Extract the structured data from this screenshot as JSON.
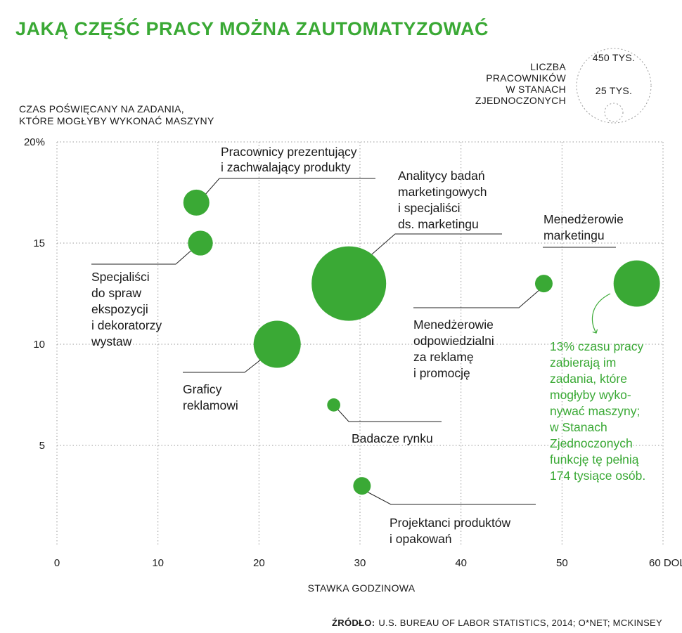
{
  "title": "JAKĄ CZĘŚĆ PRACY MOŻNA ZAUTOMATYZOWAĆ",
  "size_legend": {
    "label_lines": [
      "LICZBA",
      "PRACOWNIKÓW",
      "W STANACH",
      "ZJEDNOCZONYCH"
    ],
    "large_label": "450 TYS.",
    "small_label": "25 TYS.",
    "large_value": 450,
    "small_value": 25
  },
  "source": {
    "label": "ŹRÓDŁO:",
    "text": "U.S. BUREAU OF LABOR STATISTICS, 2014; O*NET; MCKINSEY"
  },
  "annotation_lines": [
    "13% czasu pracy",
    "zabierają im",
    "zadania, które",
    "mogłyby wyko-",
    "nywać maszyny;",
    "w Stanach",
    "Zjednoczonych",
    "funkcję tę pełnią",
    "174 tysiące osób."
  ],
  "colors": {
    "accent": "#3aa935",
    "text": "#1a1a1a",
    "grid": "#9a9a9a"
  },
  "chart_data": {
    "type": "scatter",
    "title": "JAKĄ CZĘŚĆ PRACY MOŻNA ZAUTOMATYZOWAĆ",
    "xlabel": "STAWKA GODZINOWA",
    "ylabel_lines": [
      "CZAS POŚWIĘCANY NA ZADANIA,",
      "KTÓRE MOGŁYBY WYKONAĆ MASZYNY"
    ],
    "xlim": [
      0,
      60
    ],
    "ylim": [
      0,
      20
    ],
    "x_ticks": [
      {
        "value": 0,
        "label": "0"
      },
      {
        "value": 10,
        "label": "10"
      },
      {
        "value": 20,
        "label": "20"
      },
      {
        "value": 30,
        "label": "30"
      },
      {
        "value": 40,
        "label": "40"
      },
      {
        "value": 50,
        "label": "50"
      },
      {
        "value": 60,
        "label": "60 DOL."
      }
    ],
    "y_ticks": [
      {
        "value": 5,
        "label": "5"
      },
      {
        "value": 10,
        "label": "10"
      },
      {
        "value": 15,
        "label": "15"
      },
      {
        "value": 20,
        "label": "20%"
      }
    ],
    "grid": true,
    "size_encoding": "LICZBA PRACOWNIKÓW W STANACH ZJEDNOCZONYCH",
    "points": [
      {
        "label_lines": [
          "Pracownicy prezentujący",
          "i zachwalający produkty"
        ],
        "x": 13.8,
        "y": 17,
        "workers_thousands": 55
      },
      {
        "label_lines": [
          "Specjaliści",
          "do spraw",
          "ekspozycji",
          "i dekoratorzy",
          "wystaw"
        ],
        "x": 14.2,
        "y": 15,
        "workers_thousands": 50
      },
      {
        "label_lines": [
          "Analitycy badań",
          "marketingowych",
          "i specjaliści",
          "ds. marketingu"
        ],
        "x": 28.9,
        "y": 13,
        "workers_thousands": 450
      },
      {
        "label_lines": [
          "Menedżerowie",
          "marketingu"
        ],
        "x": 57.4,
        "y": 13,
        "workers_thousands": 174
      },
      {
        "label_lines": [
          "Menedżerowie",
          "odpowiedzialni",
          "za reklamę",
          "i promocję"
        ],
        "x": 48.2,
        "y": 13,
        "workers_thousands": 25
      },
      {
        "label_lines": [
          "Graficy",
          "reklamowi"
        ],
        "x": 21.8,
        "y": 10,
        "workers_thousands": 180
      },
      {
        "label_lines": [
          "Badacze rynku"
        ],
        "x": 27.4,
        "y": 7,
        "workers_thousands": 14
      },
      {
        "label_lines": [
          "Projektanci produktów",
          "i opakowań"
        ],
        "x": 30.2,
        "y": 3,
        "workers_thousands": 25
      }
    ]
  }
}
